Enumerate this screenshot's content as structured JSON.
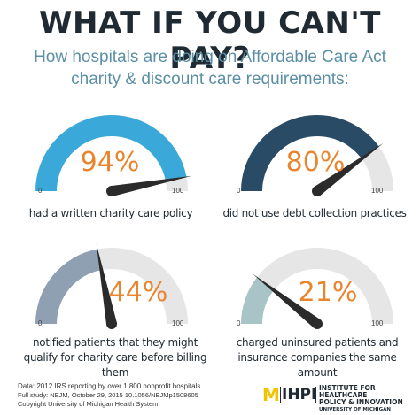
{
  "title": "WHAT IF YOU CAN'T PAY?",
  "subtitle": "How hospitals are doing on Affordable Care Act charity & discount care requirements:",
  "scale": {
    "min": "0",
    "max": "100"
  },
  "gauges": [
    {
      "percent": "94%",
      "value": 94,
      "color": "#3aa8d8",
      "caption": "had a written charity care policy"
    },
    {
      "percent": "80%",
      "value": 80,
      "color": "#2a4b66",
      "caption": "did not use debt collection practices"
    },
    {
      "percent": "44%",
      "value": 44,
      "color": "#8fa0b3",
      "caption": "notified patients that they might qualify for charity care before billing them"
    },
    {
      "percent": "21%",
      "value": 21,
      "color": "#a9c4c6",
      "caption": "charged uninsured patients and insurance companies the same amount"
    }
  ],
  "footer": {
    "line1": "Data: 2012 IRS reporting by over 1,800 nonprofit hospitals",
    "line2": "Full study: NEJM, October 29, 2015  10.1056/NEJMp1508605",
    "line3": "Copyright University of Michigan Health System"
  },
  "logo": {
    "mark": "M",
    "acronym": "IHPI",
    "line1": "INSTITUTE FOR HEALTHCARE",
    "line2": "POLICY & INNOVATION",
    "line3": "UNIVERSITY OF MICHIGAN"
  }
}
